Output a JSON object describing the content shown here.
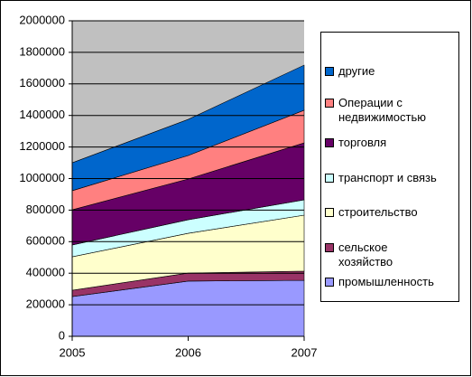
{
  "chart_data": {
    "type": "stacked_area",
    "x": [
      2005,
      2006,
      2007
    ],
    "xlim": [
      2005,
      2007
    ],
    "xticks": [
      2005,
      2006,
      2007
    ],
    "ylim": [
      0,
      2000000
    ],
    "yticks": [
      0,
      200000,
      400000,
      600000,
      800000,
      1000000,
      1200000,
      1400000,
      1600000,
      1800000,
      2000000
    ],
    "grid": true,
    "legend": "right",
    "series": [
      {
        "name": "промышленность",
        "color": "#9999ff",
        "values": [
          252000,
          350000,
          355000
        ]
      },
      {
        "name": "сельское хозяйство",
        "color": "#993366",
        "values": [
          40000,
          51000,
          58000
        ]
      },
      {
        "name": "строительство",
        "color": "#ffffcc",
        "values": [
          212000,
          252000,
          355000
        ]
      },
      {
        "name": "транспорт и связь",
        "color": "#ccffff",
        "values": [
          75000,
          86000,
          97000
        ]
      },
      {
        "name": "торговля",
        "color": "#660066",
        "values": [
          223000,
          258000,
          361000
        ]
      },
      {
        "name": "Операции с недвижимостью",
        "color": "#ff8080",
        "values": [
          121000,
          149000,
          207000
        ]
      },
      {
        "name": "другие",
        "color": "#0066cc",
        "values": [
          177000,
          229000,
          286000
        ]
      }
    ]
  }
}
